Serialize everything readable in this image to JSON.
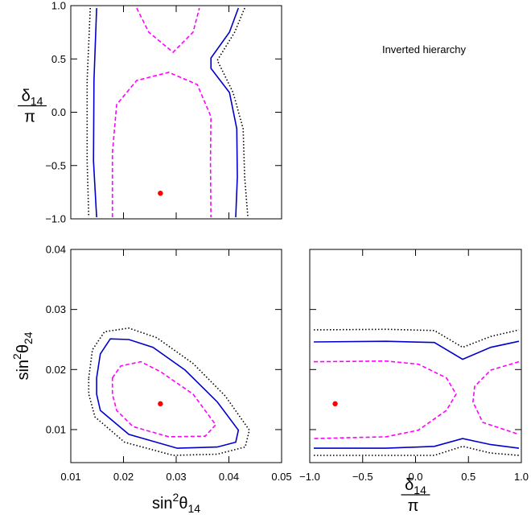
{
  "annotation": "Inverted hierarchy",
  "chart_data": [
    {
      "type": "contour",
      "xlim": [
        0.01,
        0.05
      ],
      "ylim": [
        -1,
        1
      ],
      "xticks": [
        0.01,
        0.02,
        0.03,
        0.04,
        0.05
      ],
      "yticks": [
        {
          "value": -1,
          "label": "−1.0"
        },
        {
          "value": -0.5,
          "label": "−0.5"
        },
        {
          "value": 0,
          "label": "0.0"
        },
        {
          "value": 0.5,
          "label": "0.5"
        },
        {
          "value": 1,
          "label": "1.0"
        }
      ],
      "show_xtick_labels": false,
      "show_ytick_labels": true,
      "ylabel": {
        "num": "δ",
        "sub": "14",
        "den": "π"
      },
      "series": [
        {
          "color": "#0000cc",
          "dash": "solid",
          "x": [
            0.0149,
            0.0144,
            0.0143,
            0.0149
          ],
          "y": [
            0.977,
            0.298,
            -0.457,
            -0.985
          ]
        },
        {
          "color": "#0000cc",
          "dash": "solid",
          "x": [
            0.0418,
            0.0401,
            0.0366,
            0.0366,
            0.0401,
            0.0415,
            0.0416,
            0.0413
          ],
          "y": [
            0.977,
            0.751,
            0.509,
            0.411,
            0.185,
            -0.155,
            -0.608,
            -0.985
          ]
        },
        {
          "color": "#000000",
          "dash": "dotted",
          "x": [
            0.0137,
            0.0131,
            0.0131,
            0.0134
          ],
          "y": [
            0.977,
            0.298,
            -0.457,
            -0.985
          ]
        },
        {
          "color": "#000000",
          "dash": "dotted",
          "x": [
            0.043,
            0.0411,
            0.0378,
            0.0408,
            0.0427,
            0.043,
            0.0436
          ],
          "y": [
            0.977,
            0.751,
            0.487,
            0.185,
            -0.155,
            -0.608,
            -0.985
          ]
        },
        {
          "color": "#ff00ff",
          "dash": "dashed",
          "x": [
            0.0225,
            0.0248,
            0.0294,
            0.0332,
            0.0344
          ],
          "y": [
            0.977,
            0.751,
            0.562,
            0.751,
            0.977
          ]
        },
        {
          "color": "#ff00ff",
          "dash": "dashed",
          "x": [
            0.0179,
            0.0179,
            0.0187,
            0.0225,
            0.0286,
            0.034,
            0.0366,
            0.0365,
            0.0366
          ],
          "y": [
            -0.985,
            -0.381,
            0.072,
            0.298,
            0.374,
            0.26,
            -0.042,
            -0.457,
            -0.985
          ]
        }
      ],
      "best_fit": {
        "color": "#ff0000",
        "x": 0.027,
        "y": -0.76
      }
    },
    {
      "type": "contour",
      "xlim": [
        0.01,
        0.05
      ],
      "ylim": [
        0.0045,
        0.04
      ],
      "xticks": [
        0.01,
        0.02,
        0.03,
        0.04,
        0.05
      ],
      "yticks": [
        0.01,
        0.02,
        0.03,
        0.04
      ],
      "show_xtick_labels": true,
      "show_ytick_labels": true,
      "xlabel": {
        "base": "sin",
        "sup": "2",
        "sym": "θ",
        "sub": "14"
      },
      "ylabel": {
        "base": "sin",
        "sup": "2",
        "sym": "θ",
        "sub": "24"
      },
      "closed": true,
      "series": [
        {
          "color": "#0000cc",
          "dash": "solid",
          "x": [
            0.0149,
            0.0156,
            0.0175,
            0.021,
            0.0256,
            0.0317,
            0.0378,
            0.0418,
            0.0413,
            0.0378,
            0.0302,
            0.021,
            0.0156,
            0.0149
          ],
          "y": [
            0.0186,
            0.0226,
            0.0251,
            0.025,
            0.0237,
            0.0199,
            0.0146,
            0.0099,
            0.0079,
            0.0071,
            0.0069,
            0.0092,
            0.0132,
            0.0159
          ]
        },
        {
          "color": "#000000",
          "dash": "dotted",
          "x": [
            0.0134,
            0.0141,
            0.0164,
            0.021,
            0.0263,
            0.0332,
            0.0393,
            0.0439,
            0.0431,
            0.0378,
            0.0294,
            0.0202,
            0.0146,
            0.0134
          ],
          "y": [
            0.0186,
            0.0233,
            0.0263,
            0.0269,
            0.0253,
            0.021,
            0.0156,
            0.0099,
            0.0071,
            0.0059,
            0.0057,
            0.0079,
            0.0121,
            0.0159
          ]
        },
        {
          "color": "#ff00ff",
          "dash": "dashed",
          "x": [
            0.0179,
            0.0195,
            0.0233,
            0.0271,
            0.0332,
            0.0375,
            0.0355,
            0.0286,
            0.0218,
            0.0187,
            0.0179
          ],
          "y": [
            0.0186,
            0.0206,
            0.0213,
            0.0196,
            0.0159,
            0.0108,
            0.0089,
            0.0088,
            0.0105,
            0.0132,
            0.0159
          ]
        }
      ],
      "best_fit": {
        "color": "#ff0000",
        "x": 0.027,
        "y": 0.0143
      }
    },
    {
      "type": "contour",
      "xlim": [
        -1,
        1
      ],
      "ylim": [
        0.0045,
        0.04
      ],
      "xticks": [
        {
          "value": -1,
          "label": "−1.0"
        },
        {
          "value": -0.5,
          "label": "−0.5"
        },
        {
          "value": 0,
          "label": "0.0"
        },
        {
          "value": 0.5,
          "label": "0.5"
        },
        {
          "value": 1,
          "label": "1.0"
        }
      ],
      "yticks": [
        0.01,
        0.02,
        0.03,
        0.04
      ],
      "show_xtick_labels": true,
      "show_ytick_labels": false,
      "xlabel": {
        "num": "δ",
        "sub": "14",
        "den": "π"
      },
      "series": [
        {
          "color": "#0000cc",
          "dash": "solid",
          "x": [
            -0.962,
            -0.278,
            0.178,
            0.445,
            0.711,
            0.977
          ],
          "y": [
            0.0246,
            0.0247,
            0.0245,
            0.0217,
            0.0237,
            0.0247
          ]
        },
        {
          "color": "#000000",
          "dash": "dotted",
          "x": [
            -0.962,
            -0.278,
            0.178,
            0.445,
            0.711,
            0.977
          ],
          "y": [
            0.0266,
            0.0267,
            0.0265,
            0.0237,
            0.0255,
            0.0266
          ]
        },
        {
          "color": "#0000cc",
          "dash": "solid",
          "x": [
            -0.962,
            -0.278,
            0.178,
            0.445,
            0.711,
            0.977
          ],
          "y": [
            0.0069,
            0.0069,
            0.0072,
            0.0085,
            0.0075,
            0.0069
          ]
        },
        {
          "color": "#000000",
          "dash": "dotted",
          "x": [
            -0.962,
            0.178,
            0.445,
            0.711,
            0.977
          ],
          "y": [
            0.0057,
            0.0057,
            0.0072,
            0.0061,
            0.0057
          ]
        },
        {
          "color": "#ff00ff",
          "dash": "dashed",
          "x": [
            -0.962,
            -0.278,
            0.026,
            0.292,
            0.383,
            0.292,
            0.026,
            -0.278,
            -0.962
          ],
          "y": [
            0.0213,
            0.0214,
            0.0209,
            0.0186,
            0.0159,
            0.0132,
            0.0099,
            0.0088,
            0.0085
          ]
        },
        {
          "color": "#ff00ff",
          "dash": "dashed",
          "x": [
            0.977,
            0.711,
            0.559,
            0.543,
            0.635,
            0.977
          ],
          "y": [
            0.0213,
            0.0199,
            0.0172,
            0.0146,
            0.0112,
            0.0092
          ]
        }
      ],
      "best_fit": {
        "color": "#ff0000",
        "x": -0.76,
        "y": 0.0143
      }
    }
  ]
}
